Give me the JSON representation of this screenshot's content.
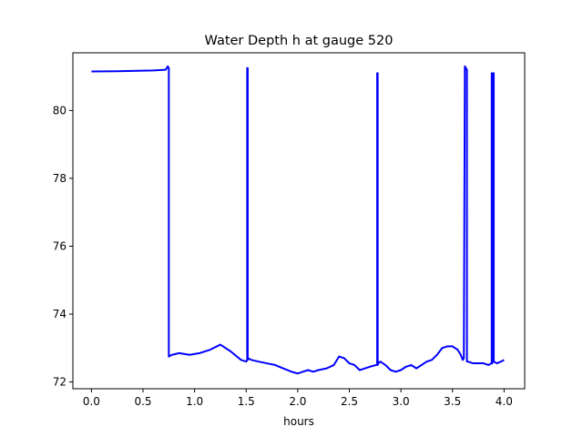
{
  "chart_data": {
    "type": "line",
    "title": "Water Depth h at gauge 520",
    "xlabel": "hours",
    "ylabel": "",
    "xlim": [
      -0.18,
      4.2
    ],
    "ylim": [
      71.8,
      81.7
    ],
    "xticks": [
      0.0,
      0.5,
      1.0,
      1.5,
      2.0,
      2.5,
      3.0,
      3.5,
      4.0
    ],
    "xtick_labels": [
      "0.0",
      "0.5",
      "1.0",
      "1.5",
      "2.0",
      "2.5",
      "3.0",
      "3.5",
      "4.0"
    ],
    "yticks": [
      72,
      74,
      76,
      78,
      80
    ],
    "ytick_labels": [
      "72",
      "74",
      "76",
      "78",
      "80"
    ],
    "grid": false,
    "legend": "none",
    "series": [
      {
        "color": "#0000ff",
        "x": [
          0.0,
          0.3,
          0.6,
          0.72,
          0.74,
          0.75,
          0.75,
          0.78,
          0.85,
          0.95,
          1.05,
          1.15,
          1.25,
          1.35,
          1.45,
          1.5,
          1.51,
          1.51,
          1.515,
          1.515,
          1.52,
          1.52,
          1.55,
          1.62,
          1.7,
          1.78,
          1.86,
          1.94,
          2.0,
          2.05,
          2.1,
          2.15,
          2.2,
          2.28,
          2.35,
          2.4,
          2.45,
          2.5,
          2.55,
          2.6,
          2.65,
          2.7,
          2.76,
          2.77,
          2.77,
          2.775,
          2.775,
          2.78,
          2.8,
          2.85,
          2.9,
          2.95,
          3.0,
          3.05,
          3.1,
          3.15,
          3.2,
          3.25,
          3.3,
          3.35,
          3.4,
          3.45,
          3.5,
          3.55,
          3.58,
          3.6,
          3.61,
          3.62,
          3.62,
          3.63,
          3.64,
          3.64,
          3.65,
          3.65,
          3.7,
          3.75,
          3.8,
          3.85,
          3.88,
          3.88,
          3.885,
          3.885,
          3.89,
          3.9,
          3.9,
          3.93,
          3.97,
          4.0
        ],
        "y": [
          81.15,
          81.16,
          81.18,
          81.2,
          81.3,
          81.25,
          72.75,
          72.8,
          72.85,
          72.8,
          72.85,
          72.95,
          73.1,
          72.9,
          72.65,
          72.6,
          72.65,
          81.25,
          81.25,
          72.65,
          72.7,
          72.7,
          72.65,
          72.6,
          72.55,
          72.5,
          72.4,
          72.3,
          72.25,
          72.3,
          72.35,
          72.3,
          72.35,
          72.4,
          72.5,
          72.75,
          72.7,
          72.55,
          72.5,
          72.35,
          72.4,
          72.45,
          72.5,
          72.5,
          81.1,
          81.1,
          72.5,
          72.55,
          72.6,
          72.5,
          72.35,
          72.3,
          72.35,
          72.45,
          72.5,
          72.4,
          72.5,
          72.6,
          72.65,
          72.8,
          73.0,
          73.05,
          73.05,
          72.95,
          72.8,
          72.65,
          72.7,
          81.3,
          81.3,
          81.25,
          81.2,
          72.6,
          72.6,
          72.6,
          72.55,
          72.55,
          72.55,
          72.5,
          72.55,
          81.1,
          81.1,
          72.55,
          72.6,
          81.1,
          72.6,
          72.55,
          72.6,
          72.65
        ]
      }
    ]
  }
}
